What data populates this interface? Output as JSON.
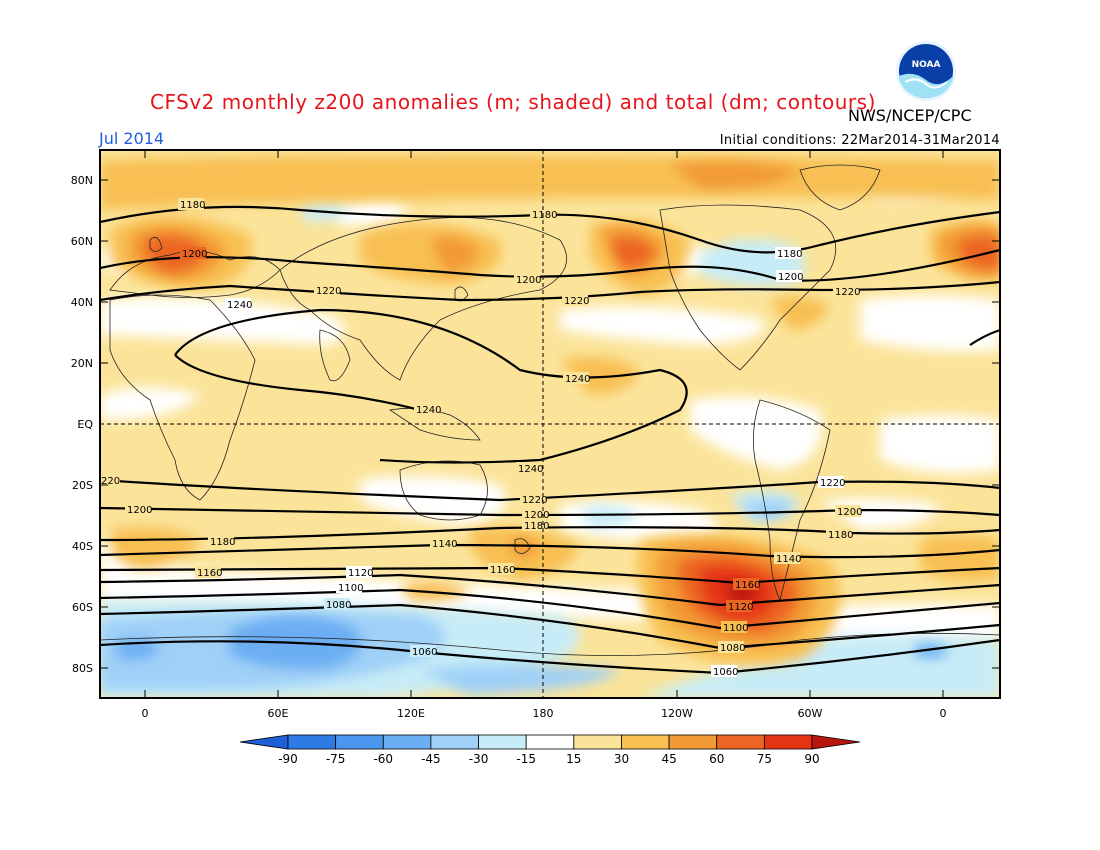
{
  "title": "CFSv2 monthly z200 anomalies (m; shaded) and total (dm; contours)",
  "agency": "NWS/NCEP/CPC",
  "valid_month": "Jul 2014",
  "initial_conditions": "Initial conditions: 22Mar2014-31Mar2014",
  "logo_text": "NOAA",
  "lat_labels": [
    "80N",
    "60N",
    "40N",
    "20N",
    "EQ",
    "20S",
    "40S",
    "60S",
    "80S"
  ],
  "lon_labels": [
    "0",
    "60E",
    "120E",
    "180",
    "120W",
    "60W",
    "0"
  ],
  "colorbar": {
    "labels": [
      "-90",
      "-75",
      "-60",
      "-45",
      "-30",
      "-15",
      "15",
      "30",
      "45",
      "60",
      "75",
      "90"
    ],
    "colors": [
      "#1e5fd8",
      "#2f7be6",
      "#4b95ee",
      "#6caef3",
      "#9fd0f7",
      "#c8ecf7",
      "#ffffff",
      "#fbe49a",
      "#f8c052",
      "#f29a35",
      "#ec6522",
      "#e53414",
      "#b8150e"
    ]
  },
  "contour_labels": [
    "1060",
    "1080",
    "1100",
    "1120",
    "1140",
    "1160",
    "1180",
    "1200",
    "1220",
    "1240"
  ],
  "contour_levels_dm": [
    1060,
    1080,
    1100,
    1120,
    1140,
    1160,
    1180,
    1200,
    1220,
    1240
  ]
}
